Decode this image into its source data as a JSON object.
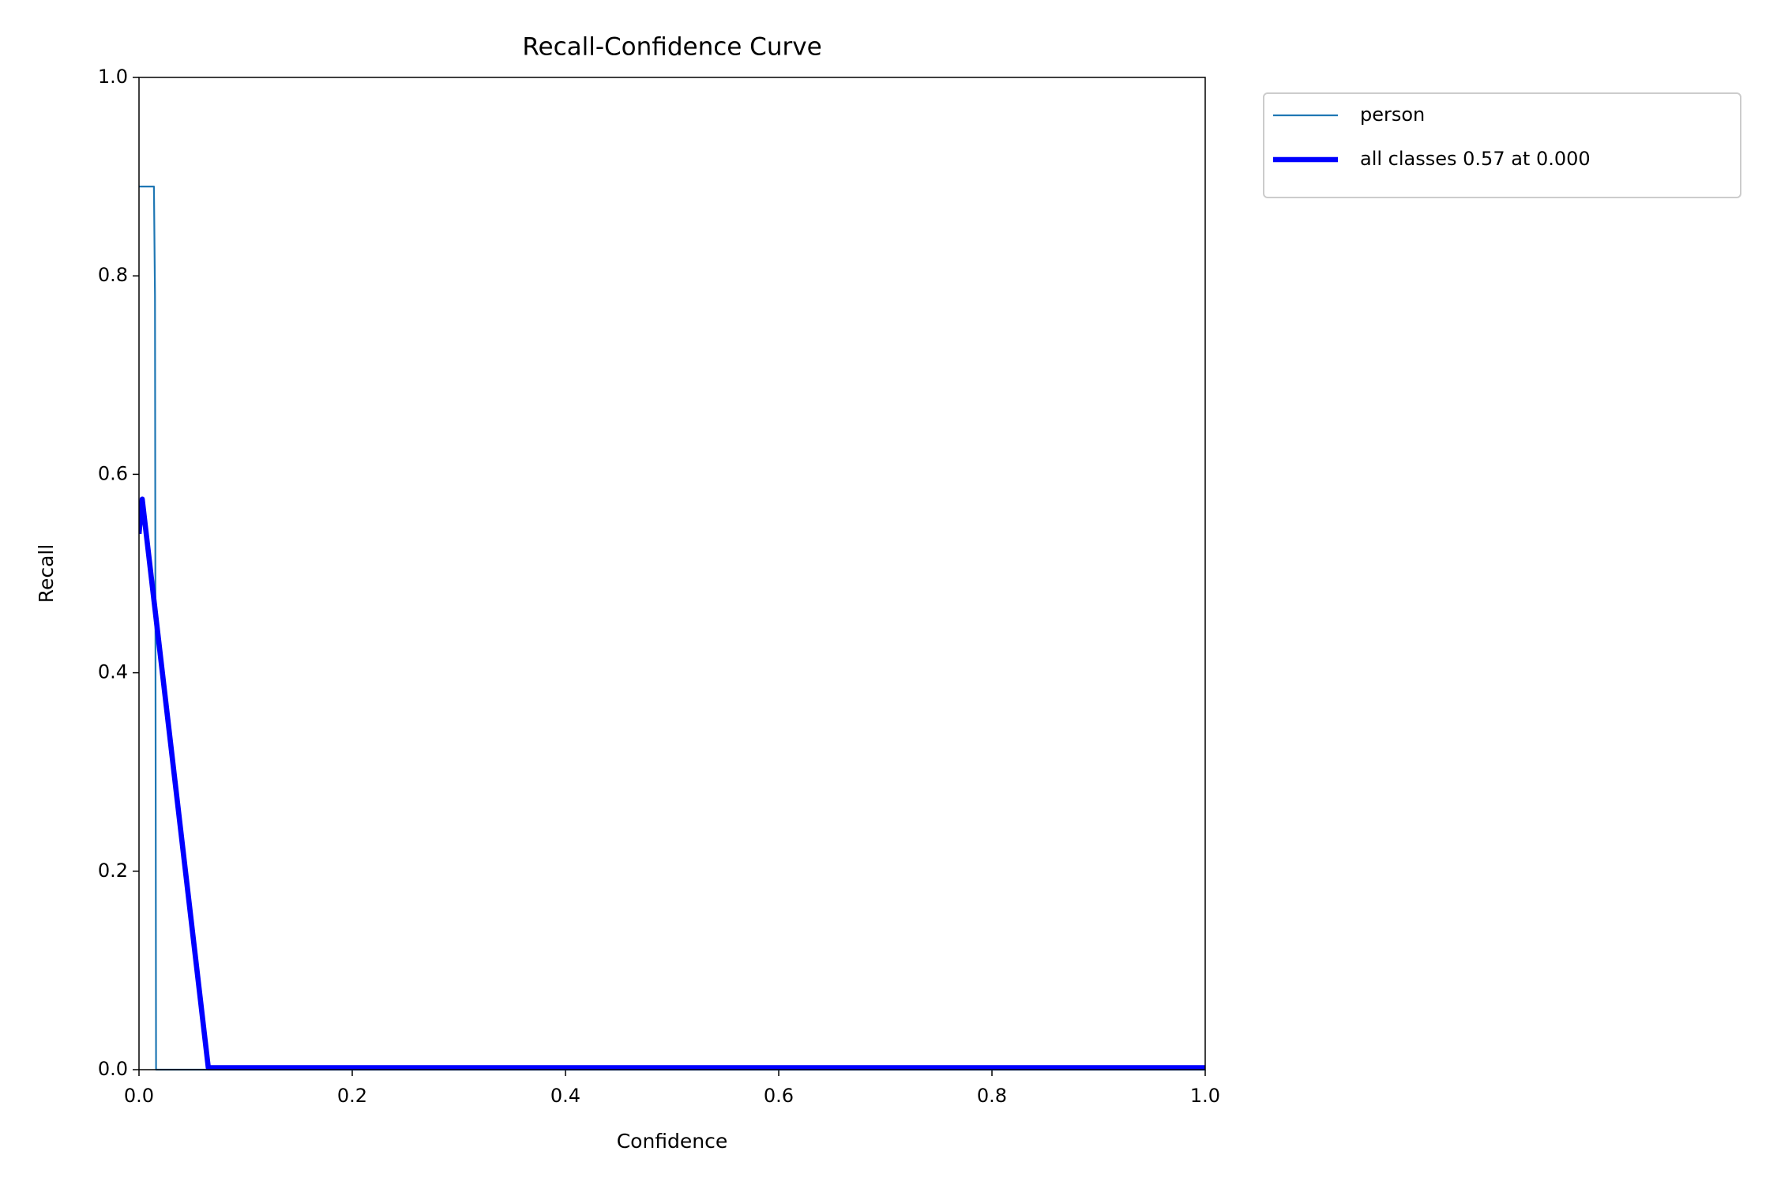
{
  "chart_data": {
    "type": "line",
    "title": "Recall-Confidence Curve",
    "x_label": "Confidence",
    "y_label": "Recall",
    "xlim": [
      0,
      1
    ],
    "ylim": [
      0,
      1
    ],
    "xticks": [
      {
        "value": 0,
        "label": "0.0"
      },
      {
        "value": 0.2,
        "label": "0.2"
      },
      {
        "value": 0.4,
        "label": "0.4"
      },
      {
        "value": 0.6,
        "label": "0.6"
      },
      {
        "value": 0.8,
        "label": "0.8"
      },
      {
        "value": 1,
        "label": "1.0"
      }
    ],
    "yticks": [
      {
        "value": 0,
        "label": "0.0"
      },
      {
        "value": 0.2,
        "label": "0.2"
      },
      {
        "value": 0.4,
        "label": "0.4"
      },
      {
        "value": 0.6,
        "label": "0.6"
      },
      {
        "value": 0.8,
        "label": "0.8"
      },
      {
        "value": 1,
        "label": "1.0"
      }
    ],
    "legend": "outside upper right",
    "series": [
      {
        "name": "person",
        "color": "#1f77b4",
        "width": 1,
        "x": [
          0,
          0.014,
          0.015,
          0.016,
          1
        ],
        "values": [
          0.89,
          0.89,
          0.78,
          0,
          0
        ]
      },
      {
        "name": "all classes 0.57 at 0.000",
        "color": "#0000ff",
        "width": 3,
        "x": [
          0,
          0.003,
          0.065,
          1
        ],
        "values": [
          0.54,
          0.575,
          0.002,
          0.002
        ]
      }
    ]
  }
}
